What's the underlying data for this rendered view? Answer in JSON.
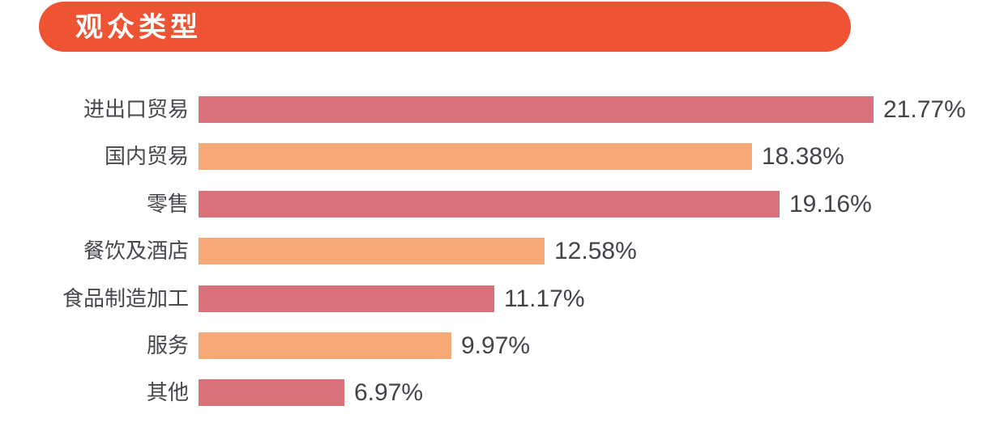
{
  "page": {
    "background": "#ffffff"
  },
  "header": {
    "title": "观众类型",
    "badge_color": "#EE5434",
    "text_color": "#ffffff"
  },
  "chart_data": {
    "type": "bar",
    "orientation": "horizontal",
    "title": "观众类型",
    "xlabel": "",
    "ylabel": "",
    "legend": false,
    "grid": false,
    "axis_shown": false,
    "categories": [
      "进出口贸易",
      "国内贸易",
      "零售",
      "餐饮及酒店",
      "食品制造加工",
      "服务",
      "其他"
    ],
    "values": [
      21.77,
      18.38,
      19.16,
      12.58,
      11.17,
      9.97,
      6.97
    ],
    "value_labels": [
      "21.77%",
      "18.38%",
      "19.16%",
      "12.58%",
      "11.17%",
      "9.97%",
      "6.97%"
    ],
    "bar_colors": [
      "#D9717A",
      "#F6A876",
      "#D9717A",
      "#F6A876",
      "#D9717A",
      "#F6A876",
      "#D9717A"
    ],
    "color_rose": "#D9717A",
    "color_orange": "#F6A876",
    "label_color": "#47484d",
    "value_color": "#43444a"
  }
}
